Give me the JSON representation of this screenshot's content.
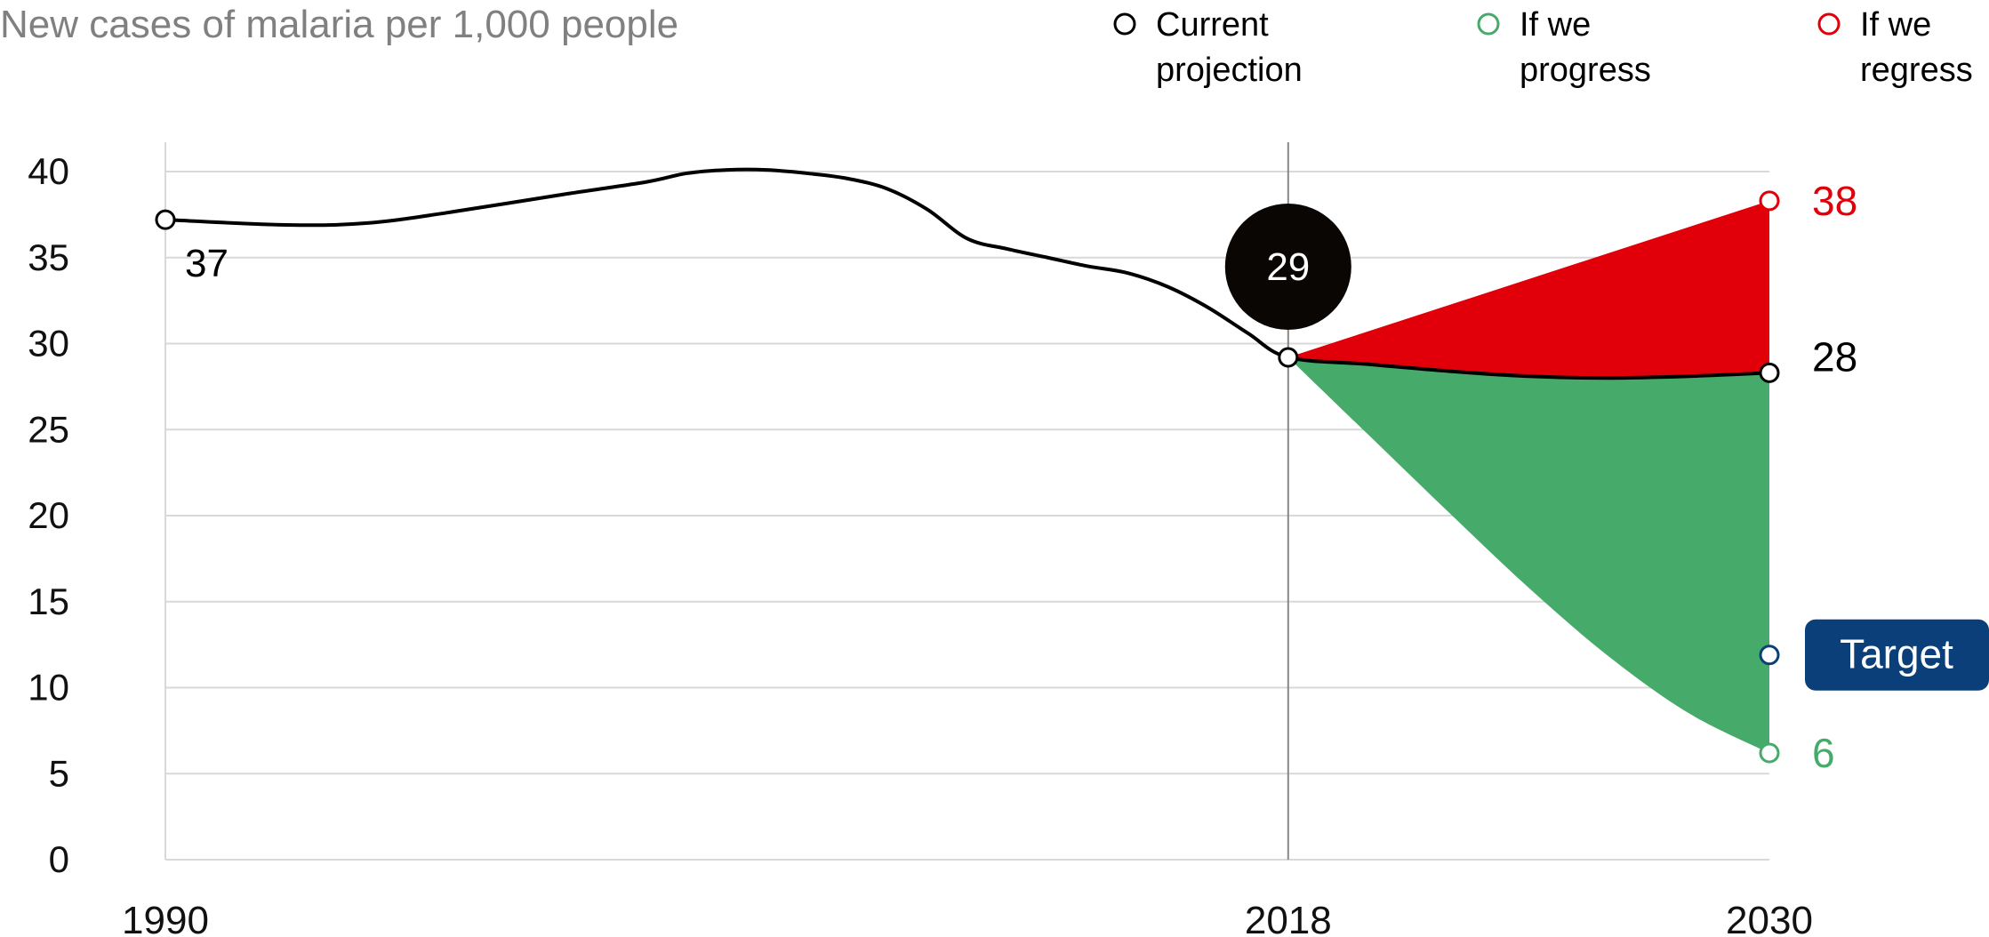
{
  "chart_data": {
    "type": "area",
    "title": "New cases of malaria per 1,000 people",
    "xlabel": "",
    "ylabel": "",
    "xlim": [
      1990,
      2030
    ],
    "ylim": [
      0,
      40
    ],
    "x_ticks": [
      1990,
      2018,
      2030
    ],
    "x_tick_labels": [
      "1990",
      "2018",
      "2030"
    ],
    "y_ticks": [
      0,
      5,
      10,
      15,
      20,
      25,
      30,
      35,
      40
    ],
    "y_tick_labels": [
      "0",
      "5",
      "10",
      "15",
      "20",
      "25",
      "30",
      "35",
      "40"
    ],
    "grid": true,
    "legend_position": "top",
    "legend": [
      {
        "key": "current",
        "line1": "Current",
        "line2": "projection"
      },
      {
        "key": "progress",
        "line1": "If we",
        "line2": "progress"
      },
      {
        "key": "regress",
        "line1": "If we",
        "line2": "regress"
      }
    ],
    "series": [
      {
        "key": "current",
        "x": [
          1990,
          1993,
          1995,
          1997,
          2000,
          2002,
          2003,
          2004,
          2005,
          2006,
          2007,
          2008,
          2009,
          2010,
          2011,
          2012,
          2013,
          2014,
          2015,
          2016,
          2017,
          2018,
          2020,
          2022,
          2024,
          2026,
          2028,
          2030
        ],
        "y": [
          37.2,
          36.9,
          37.0,
          37.6,
          38.7,
          39.4,
          39.9,
          40.1,
          40.1,
          39.9,
          39.6,
          39.0,
          37.8,
          36.1,
          35.5,
          35.0,
          34.5,
          34.1,
          33.3,
          32.1,
          30.6,
          29.2,
          28.8,
          28.4,
          28.1,
          28.0,
          28.1,
          28.3
        ]
      },
      {
        "key": "progress",
        "x": [
          2018,
          2020,
          2022,
          2024,
          2026,
          2028,
          2030
        ],
        "y": [
          29.2,
          24.7,
          20.2,
          15.8,
          11.8,
          8.5,
          6.2
        ]
      },
      {
        "key": "regress",
        "x": [
          2018,
          2030
        ],
        "y": [
          29.2,
          38.3
        ]
      }
    ],
    "annotations": {
      "start_label": "37",
      "current_badge": "29",
      "end_current_label": "28",
      "end_regress_label": "38",
      "end_progress_label": "6",
      "target_label": "Target",
      "target_value": 11.9
    },
    "colors": {
      "current": "#000000",
      "progress": "#46ab6a",
      "regress": "#e1000a",
      "target": "#0a3f7a",
      "grid": "#d9d9d9",
      "axis_text": "#111111",
      "title": "#808080",
      "marker_line": "#888888"
    }
  }
}
